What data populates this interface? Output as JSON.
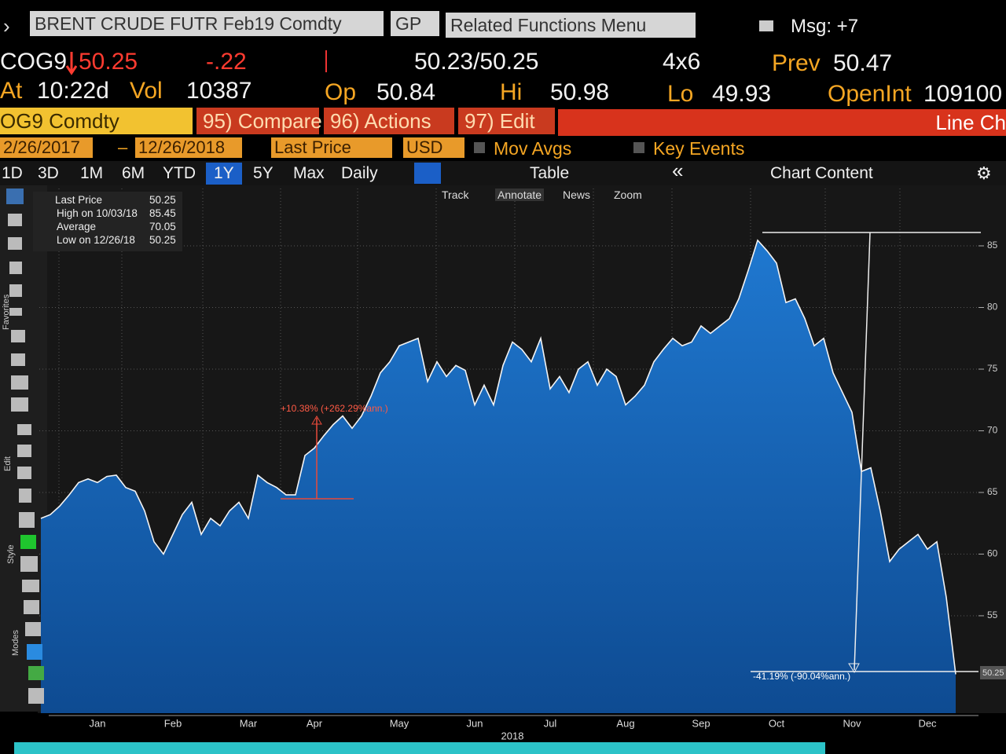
{
  "header": {
    "security": "BRENT CRUDE FUTR Feb19 Comdty",
    "function": "GP",
    "related": "Related Functions Menu",
    "msg": "Msg: +7"
  },
  "quote": {
    "ticker": "COG9",
    "last": "50.25",
    "change": "-.22",
    "bid_ask": "50.23/50.25",
    "size": "4x6",
    "prev_label": "Prev",
    "prev": "50.47",
    "time_label": "At",
    "time": "10:22d",
    "vol_label": "Vol",
    "vol": "10387",
    "op_label": "Op",
    "op": "50.84",
    "hi_label": "Hi",
    "hi": "50.98",
    "lo_label": "Lo",
    "lo": "49.93",
    "oi_label": "OpenInt",
    "oi": "109100"
  },
  "toolbar": {
    "security": "OG9 Comdty",
    "buttons": [
      "95) Compare",
      "96) Actions",
      "97) Edit"
    ],
    "chart_type": "Line Ch"
  },
  "settings": {
    "start": "2/26/2017",
    "end": "12/26/2018",
    "field": "Last Price",
    "currency": "USD",
    "mov_avgs": "Mov Avgs",
    "key_events": "Key Events"
  },
  "ranges": [
    "1D",
    "3D",
    "1M",
    "6M",
    "YTD",
    "1Y",
    "5Y",
    "Max"
  ],
  "period": "Daily",
  "table": "Table",
  "chart_content": "Chart Content",
  "chart_tools": [
    "Track",
    "Annotate",
    "News",
    "Zoom"
  ],
  "legend": {
    "items": [
      {
        "label": "Last Price",
        "value": "50.25"
      },
      {
        "label": "High on 10/03/18",
        "value": "85.45"
      },
      {
        "label": "Average",
        "value": "70.05"
      },
      {
        "label": "Low on 12/26/18",
        "value": "50.25"
      }
    ]
  },
  "side_labels": [
    "Favorites",
    "Edit",
    "Style",
    "Modes"
  ],
  "chart_data": {
    "type": "area",
    "x_label": "2018",
    "color": "#1a69bd",
    "categories": [
      null,
      null,
      null,
      null,
      null,
      null,
      "Jan",
      null,
      null,
      null,
      null,
      null,
      null,
      null,
      "Feb",
      null,
      null,
      null,
      null,
      null,
      null,
      null,
      "Mar",
      null,
      null,
      null,
      null,
      null,
      null,
      "Apr",
      null,
      null,
      null,
      null,
      null,
      null,
      null,
      null,
      "May",
      null,
      null,
      null,
      null,
      null,
      null,
      null,
      "Jun",
      null,
      null,
      null,
      null,
      null,
      null,
      null,
      "Jul",
      null,
      null,
      null,
      null,
      null,
      null,
      null,
      "Aug",
      null,
      null,
      null,
      null,
      null,
      null,
      null,
      "Sep",
      null,
      null,
      null,
      null,
      null,
      null,
      null,
      "Oct",
      null,
      null,
      null,
      null,
      null,
      null,
      null,
      "Nov",
      null,
      null,
      null,
      null,
      null,
      null,
      null,
      "Dec",
      null,
      null,
      null
    ],
    "values": [
      62.9,
      63.2,
      63.9,
      64.8,
      65.8,
      66.1,
      65.8,
      66.3,
      66.4,
      65.4,
      65.1,
      63.5,
      61.0,
      60.0,
      61.6,
      63.2,
      64.2,
      61.6,
      62.9,
      62.3,
      63.5,
      64.2,
      62.9,
      66.4,
      65.8,
      65.4,
      64.8,
      64.8,
      68.0,
      68.6,
      69.6,
      70.5,
      71.2,
      70.2,
      71.2,
      72.8,
      74.7,
      75.6,
      76.9,
      77.2,
      77.5,
      74.0,
      75.6,
      74.4,
      75.3,
      74.9,
      72.1,
      73.7,
      72.1,
      75.3,
      77.2,
      76.6,
      75.6,
      77.5,
      73.4,
      74.4,
      73.1,
      75.0,
      75.6,
      73.7,
      75.0,
      74.4,
      72.1,
      72.8,
      73.7,
      75.6,
      76.6,
      77.5,
      76.9,
      77.2,
      78.5,
      77.9,
      78.5,
      79.1,
      80.7,
      83.0,
      85.45,
      84.6,
      83.6,
      80.4,
      80.7,
      79.1,
      76.9,
      77.5,
      74.7,
      73.1,
      71.5,
      66.7,
      67.0,
      63.5,
      59.4,
      60.4,
      61.0,
      61.6,
      60.4,
      61.0,
      56.5,
      50.25
    ],
    "ylim": [
      47.1,
      89.65
    ],
    "yticks": [
      55,
      60,
      65,
      70,
      75,
      80,
      85
    ],
    "grid": true,
    "annotations": [
      "+10.38% (+262.29%ann.)",
      "-41.19% (-90.04%ann.)"
    ]
  }
}
